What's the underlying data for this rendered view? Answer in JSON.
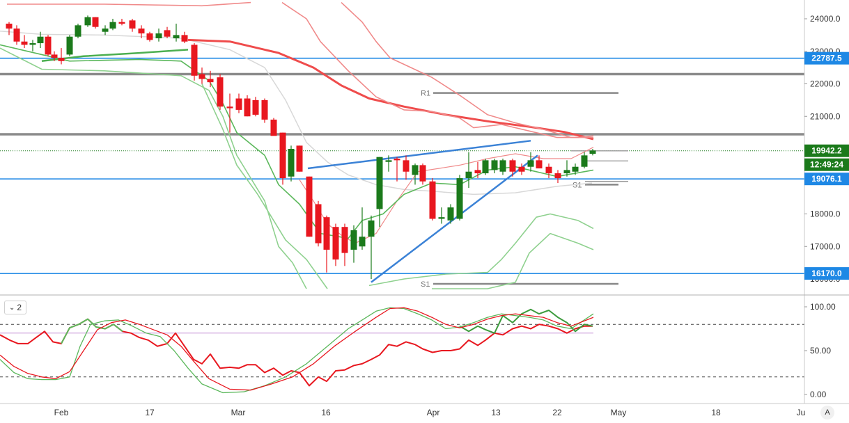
{
  "chart_data": [
    {
      "type": "candlestick",
      "title": "",
      "x_ticks": [
        "Feb",
        "17",
        "Mar",
        "16",
        "Apr",
        "13",
        "22",
        "May",
        "18",
        "Ju"
      ],
      "y_ticks": [
        "24000.0",
        "23000.0",
        "22000.0",
        "21000.0",
        "20000.0",
        "19000.0",
        "18000.0",
        "17000.0",
        "16000.0"
      ],
      "ylim": [
        15600,
        24500
      ],
      "price_badges": [
        {
          "label": "22787.5",
          "value": 22787.5,
          "color": "#1e88e5"
        },
        {
          "label": "19942.2",
          "value": 19942.2,
          "color": "#1b7a1b"
        },
        {
          "label": "12:49:24",
          "color": "#1b7a1b"
        },
        {
          "label": "19076.1",
          "value": 19076.1,
          "color": "#1e88e5"
        },
        {
          "label": "16170.0",
          "value": 16170.0,
          "color": "#1e88e5"
        }
      ],
      "horizontal_levels": [
        {
          "value": 22787.5,
          "color": "#1e88e5"
        },
        {
          "value": 22300,
          "color": "#777777"
        },
        {
          "value": 20450,
          "color": "#777777"
        },
        {
          "value": 19076.1,
          "color": "#1e88e5"
        },
        {
          "value": 16170.0,
          "color": "#1e88e5"
        }
      ],
      "pivot_labels": [
        {
          "label": "R1",
          "value": 21720
        },
        {
          "label": "S1",
          "value": 18900
        },
        {
          "label": "S1",
          "value": 15850
        }
      ],
      "colors": {
        "up": "#1b7a1b",
        "down": "#e8171f"
      }
    },
    {
      "type": "line",
      "ylim": [
        0,
        100
      ],
      "y_ticks": [
        "100.00",
        "50.00",
        "0.00"
      ],
      "dashed_levels": [
        80,
        20
      ],
      "overbought_line": 70,
      "series": [
        {
          "color": "#5cb85c"
        },
        {
          "color": "#e8171f"
        }
      ]
    }
  ],
  "ui": {
    "indicator_count": "2",
    "auto_scale": "A"
  }
}
